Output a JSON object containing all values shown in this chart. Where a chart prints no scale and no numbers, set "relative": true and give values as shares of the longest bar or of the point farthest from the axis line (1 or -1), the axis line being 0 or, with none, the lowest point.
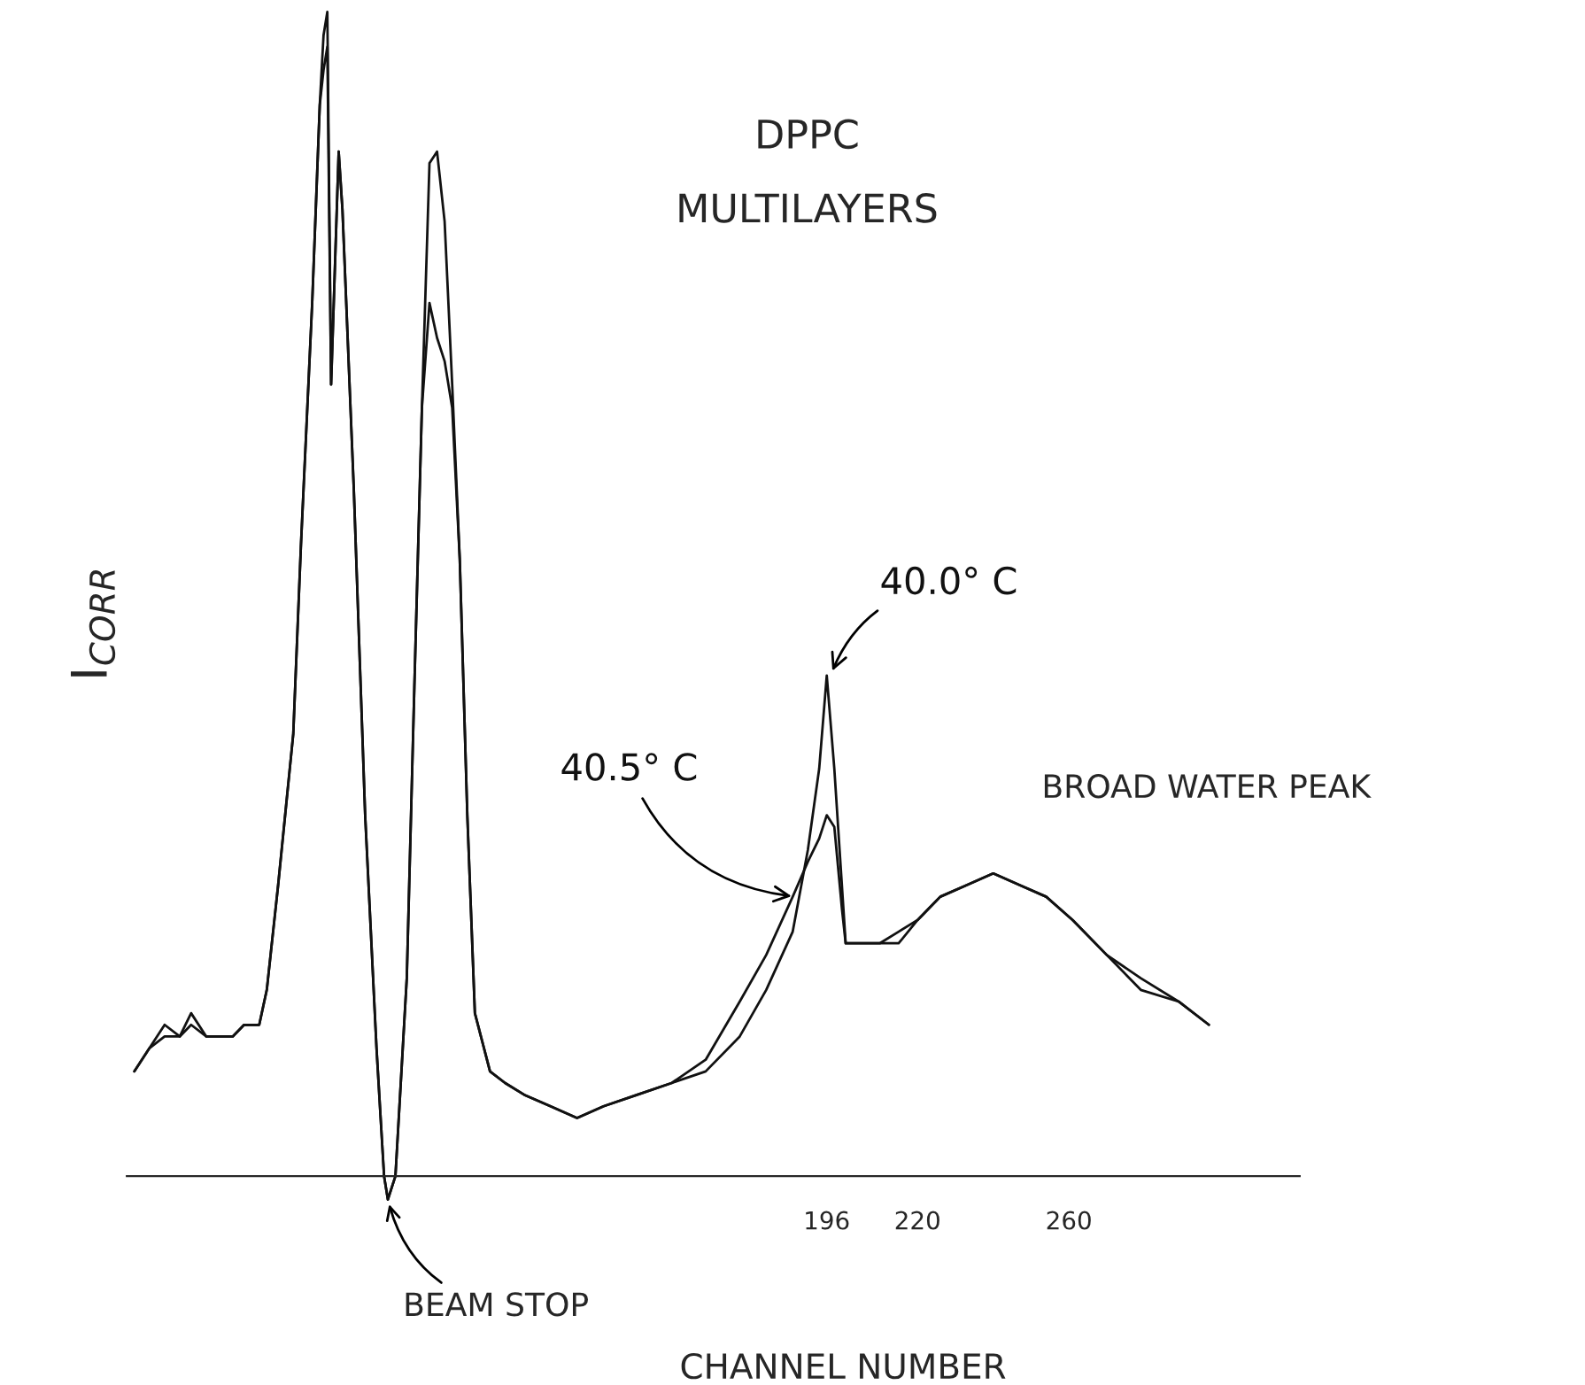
{
  "chart_data": {
    "type": "line",
    "title": "DPPC\nMULTILAYERS",
    "xlabel": "CHANNEL NUMBER",
    "ylabel": "I$_{CORR}$",
    "relative": true,
    "xlim": [
      11,
      321
    ],
    "xticks": [
      196,
      220,
      260
    ],
    "grid": false,
    "marker": "none",
    "line_style": "solid",
    "x": [
      13,
      17,
      21,
      25,
      28,
      32,
      35,
      39,
      42,
      46,
      48,
      51,
      55,
      57,
      60,
      62,
      63,
      64,
      65,
      67,
      68,
      71,
      74,
      77,
      79,
      80,
      82,
      85,
      87,
      89,
      91,
      93,
      95,
      97,
      99,
      101,
      103,
      107,
      111,
      116,
      123,
      130,
      137,
      146,
      155,
      164,
      173,
      180,
      187,
      191,
      194,
      196,
      198,
      200,
      201,
      206,
      210,
      215,
      220,
      226,
      233,
      240,
      247,
      254,
      261,
      270,
      279,
      289,
      297
    ],
    "series": [
      {
        "name": "40.0° C",
        "color": "#111111",
        "values": [
          0.09,
          0.11,
          0.13,
          0.12,
          0.14,
          0.12,
          0.12,
          0.12,
          0.13,
          0.13,
          0.16,
          0.25,
          0.38,
          0.54,
          0.75,
          0.92,
          0.98,
          1.0,
          0.68,
          0.88,
          0.83,
          0.59,
          0.31,
          0.11,
          0.0,
          -0.02,
          0.0,
          0.17,
          0.42,
          0.66,
          0.87,
          0.88,
          0.82,
          0.68,
          0.53,
          0.31,
          0.14,
          0.09,
          0.08,
          0.07,
          0.06,
          0.05,
          0.06,
          0.07,
          0.08,
          0.09,
          0.12,
          0.16,
          0.21,
          0.28,
          0.35,
          0.43,
          0.35,
          0.25,
          0.2,
          0.2,
          0.2,
          0.2,
          0.22,
          0.24,
          0.25,
          0.26,
          0.25,
          0.24,
          0.22,
          0.19,
          0.16,
          0.15,
          0.13
        ]
      },
      {
        "name": "40.5° C",
        "color": "#111111",
        "values": [
          0.09,
          0.11,
          0.12,
          0.12,
          0.13,
          0.12,
          0.12,
          0.12,
          0.13,
          0.13,
          0.16,
          0.25,
          0.38,
          0.54,
          0.75,
          0.92,
          0.95,
          0.97,
          0.68,
          0.88,
          0.83,
          0.59,
          0.31,
          0.11,
          0.0,
          -0.02,
          0.0,
          0.17,
          0.42,
          0.66,
          0.75,
          0.72,
          0.7,
          0.66,
          0.53,
          0.31,
          0.14,
          0.09,
          0.08,
          0.07,
          0.06,
          0.05,
          0.06,
          0.07,
          0.08,
          0.1,
          0.15,
          0.19,
          0.24,
          0.27,
          0.29,
          0.31,
          0.3,
          0.23,
          0.2,
          0.2,
          0.2,
          0.21,
          0.22,
          0.24,
          0.25,
          0.26,
          0.25,
          0.24,
          0.22,
          0.19,
          0.17,
          0.15,
          0.13
        ]
      }
    ],
    "annotations": [
      {
        "text": "BEAM STOP",
        "x": 80,
        "y": -0.02
      },
      "BROAD WATER PEAK"
    ]
  }
}
